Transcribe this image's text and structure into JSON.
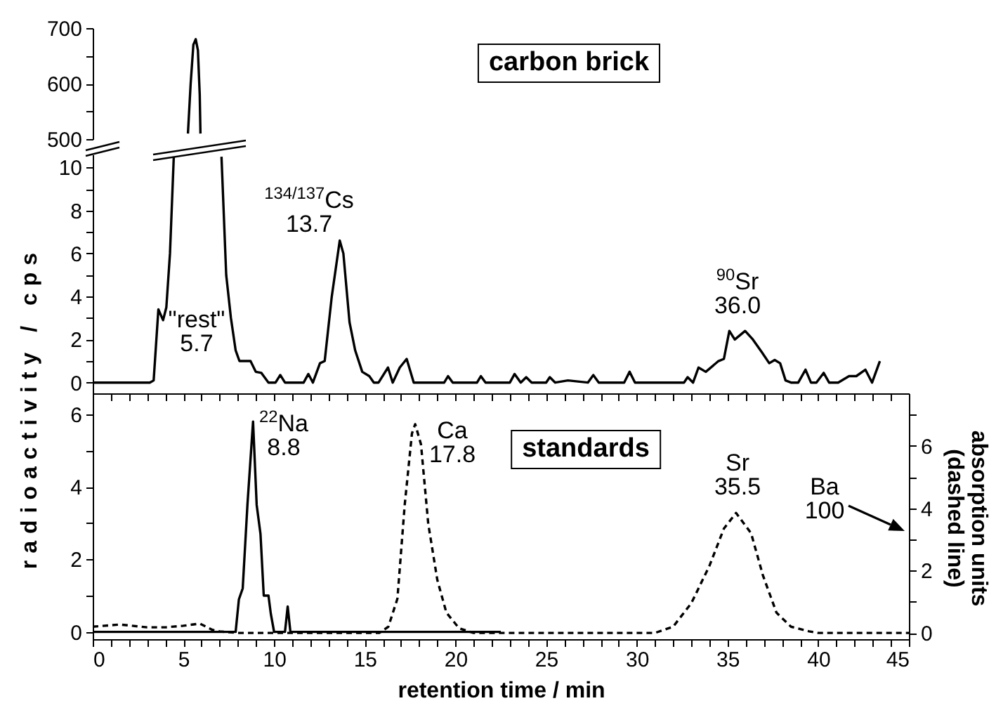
{
  "chart_data": [
    {
      "type": "line",
      "xlim": [
        0,
        45
      ],
      "ylim": [
        500,
        700
      ],
      "yticks": [
        500,
        {
          "value": 550,
          "label": null
        },
        600,
        {
          "value": 650,
          "label": null
        },
        700
      ],
      "tick_labels": "y",
      "annotations": [
        "carbon brick"
      ],
      "series": [
        {
          "color": "#000000",
          "x": [
            5.25,
            5.4,
            5.55,
            5.68,
            5.8,
            5.9,
            5.94
          ],
          "values": [
            510,
            600,
            670,
            680,
            660,
            580,
            510
          ]
        }
      ]
    },
    {
      "type": "line",
      "xlim": [
        0,
        45
      ],
      "ylim": [
        -0.5,
        10.6
      ],
      "ylabel": "radioactivity / cps",
      "tick_labels": "y",
      "xticks": [
        0,
        {
          "value": 1,
          "label": null
        },
        {
          "value": 2,
          "label": null
        },
        {
          "value": 3,
          "label": null
        },
        {
          "value": 4,
          "label": null
        },
        5,
        {
          "value": 6,
          "label": null
        },
        {
          "value": 7,
          "label": null
        },
        {
          "value": 8,
          "label": null
        },
        {
          "value": 9,
          "label": null
        },
        10,
        {
          "value": 11,
          "label": null
        },
        {
          "value": 12,
          "label": null
        },
        {
          "value": 13,
          "label": null
        },
        {
          "value": 14,
          "label": null
        },
        15,
        {
          "value": 16,
          "label": null
        },
        {
          "value": 17,
          "label": null
        },
        {
          "value": 18,
          "label": null
        },
        {
          "value": 19,
          "label": null
        },
        20,
        {
          "value": 21,
          "label": null
        },
        {
          "value": 22,
          "label": null
        },
        {
          "value": 23,
          "label": null
        },
        {
          "value": 24,
          "label": null
        },
        25,
        {
          "value": 26,
          "label": null
        },
        {
          "value": 27,
          "label": null
        },
        {
          "value": 28,
          "label": null
        },
        {
          "value": 29,
          "label": null
        },
        30,
        {
          "value": 31,
          "label": null
        },
        {
          "value": 32,
          "label": null
        },
        {
          "value": 33,
          "label": null
        },
        {
          "value": 34,
          "label": null
        },
        35,
        {
          "value": 36,
          "label": null
        },
        {
          "value": 37,
          "label": null
        },
        {
          "value": 38,
          "label": null
        },
        {
          "value": 39,
          "label": null
        },
        40,
        {
          "value": 41,
          "label": null
        },
        {
          "value": 42,
          "label": null
        },
        {
          "value": 43,
          "label": null
        },
        {
          "value": 44,
          "label": null
        },
        45
      ],
      "yticks": [
        0,
        {
          "value": 1,
          "label": null
        },
        2,
        {
          "value": 3,
          "label": null
        },
        4,
        {
          "value": 5,
          "label": null
        },
        6,
        {
          "value": 7,
          "label": null
        },
        8,
        {
          "value": 9,
          "label": null
        },
        10
      ],
      "annotations": [
        "\"rest\"\n5.7",
        "$^{134/137}$Cs\n13.7",
        "$^{90}$Sr\n36.0"
      ],
      "series": [
        {
          "color": "#000000",
          "x": [
            0,
            3.15,
            3.36,
            3.62,
            3.88,
            4.06,
            4.26,
            4.47,
            5.7,
            7.1,
            7.36,
            7.62,
            7.88,
            8.09,
            8.7,
            8.99,
            9.3,
            9.69,
            10.08,
            10.34,
            10.6,
            11.63,
            11.89,
            12.14,
            12.53,
            12.79,
            13.18,
            13.62,
            13.82,
            14.16,
            14.47,
            14.86,
            15.25,
            15.5,
            15.76,
            16.28,
            16.54,
            16.93,
            17.31,
            17.7,
            19.38,
            19.59,
            19.85,
            21.19,
            21.4,
            21.66,
            23.0,
            23.26,
            23.6,
            23.9,
            24.2,
            25.0,
            25.2,
            25.5,
            26.2,
            27.3,
            27.6,
            27.9,
            29.3,
            29.6,
            29.9,
            32.6,
            32.8,
            33.1,
            33.4,
            33.8,
            34.5,
            34.8,
            35.1,
            35.4,
            35.97,
            36.4,
            36.9,
            37.3,
            37.6,
            37.9,
            38.2,
            38.5,
            38.9,
            39.3,
            39.6,
            39.9,
            40.3,
            40.6,
            41.1,
            41.7,
            42.1,
            42.6,
            42.97,
            43.4
          ],
          "values": [
            0,
            0,
            0.1,
            3.4,
            2.9,
            3.5,
            6,
            10.5,
            null,
            10.5,
            5,
            3,
            1.5,
            1.0,
            1.0,
            0.5,
            0.45,
            0,
            0,
            0.35,
            0,
            0,
            0.4,
            0,
            0.9,
            1.0,
            4.0,
            6.6,
            6.0,
            2.8,
            1.5,
            0.5,
            0.3,
            0,
            0,
            0.7,
            0,
            0.7,
            1.1,
            0,
            0,
            0.3,
            0,
            0,
            0.3,
            0,
            0,
            0.4,
            0,
            0.25,
            0,
            0,
            0.25,
            0,
            0.1,
            0,
            0.35,
            0,
            0,
            0.5,
            0,
            0,
            0.25,
            0,
            0.7,
            0.5,
            1.0,
            1.1,
            2.4,
            2.0,
            2.4,
            2.0,
            1.4,
            0.9,
            1.05,
            0.9,
            0.1,
            0,
            0,
            0.6,
            0,
            0,
            0.45,
            0,
            0,
            0.3,
            0.3,
            0.6,
            0,
            1.0
          ]
        }
      ]
    },
    {
      "type": "line",
      "xlim": [
        0,
        45
      ],
      "ylim": [
        -0.2,
        6.5
      ],
      "y2lim": [
        -0.2,
        7.6
      ],
      "xlabel": "retention time / min",
      "y2label": "absorption units\n(dashed line)",
      "xticks": [
        0,
        {
          "value": 1,
          "label": null
        },
        {
          "value": 2,
          "label": null
        },
        {
          "value": 3,
          "label": null
        },
        {
          "value": 4,
          "label": null
        },
        5,
        {
          "value": 6,
          "label": null
        },
        {
          "value": 7,
          "label": null
        },
        {
          "value": 8,
          "label": null
        },
        {
          "value": 9,
          "label": null
        },
        10,
        {
          "value": 11,
          "label": null
        },
        {
          "value": 12,
          "label": null
        },
        {
          "value": 13,
          "label": null
        },
        {
          "value": 14,
          "label": null
        },
        15,
        {
          "value": 16,
          "label": null
        },
        {
          "value": 17,
          "label": null
        },
        {
          "value": 18,
          "label": null
        },
        {
          "value": 19,
          "label": null
        },
        20,
        {
          "value": 21,
          "label": null
        },
        {
          "value": 22,
          "label": null
        },
        {
          "value": 23,
          "label": null
        },
        {
          "value": 24,
          "label": null
        },
        25,
        {
          "value": 26,
          "label": null
        },
        {
          "value": 27,
          "label": null
        },
        {
          "value": 28,
          "label": null
        },
        {
          "value": 29,
          "label": null
        },
        30,
        {
          "value": 31,
          "label": null
        },
        {
          "value": 32,
          "label": null
        },
        {
          "value": 33,
          "label": null
        },
        {
          "value": 34,
          "label": null
        },
        35,
        {
          "value": 36,
          "label": null
        },
        {
          "value": 37,
          "label": null
        },
        {
          "value": 38,
          "label": null
        },
        {
          "value": 39,
          "label": null
        },
        40,
        {
          "value": 41,
          "label": null
        },
        {
          "value": 42,
          "label": null
        },
        {
          "value": 43,
          "label": null
        },
        {
          "value": 44,
          "label": null
        },
        45
      ],
      "yticks": [
        0,
        {
          "value": 1,
          "label": null
        },
        2,
        {
          "value": 3,
          "label": null
        },
        4,
        {
          "value": 5,
          "label": null
        },
        6
      ],
      "y2ticks": [
        0,
        {
          "value": 1,
          "label": null
        },
        2,
        {
          "value": 3,
          "label": null
        },
        4,
        {
          "value": 5,
          "label": null
        },
        6,
        {
          "value": 7,
          "label": null
        }
      ],
      "annotations": [
        "standards",
        "$^{22}$Na\n8.8",
        "Ca\n17.8",
        "Sr\n35.5",
        "Ba\n100"
      ],
      "series": [
        {
          "color": "#000000",
          "x": [
            0,
            7.88,
            8.06,
            8.27,
            8.53,
            8.84,
            9.04,
            9.25,
            9.43,
            9.69,
            9.82,
            10.0,
            10.6,
            10.75,
            10.9,
            22.5
          ],
          "values": [
            0,
            0,
            0.9,
            1.2,
            3.5,
            5.8,
            3.5,
            2.7,
            1.0,
            1.0,
            0.5,
            0,
            0,
            0.7,
            0,
            0
          ]
        },
        {
          "color": "#000000",
          "axis": "y2",
          "line_style": "dashed",
          "x": [
            0,
            1.5,
            3,
            4,
            5,
            5.9,
            6.6,
            7,
            8,
            15.8,
            16.3,
            16.8,
            17.2,
            17.6,
            17.78,
            18.1,
            18.5,
            19,
            19.5,
            20.2,
            21,
            31.0,
            32.0,
            33.0,
            34.0,
            34.8,
            35.47,
            36.3,
            36.95,
            37.7,
            38.5,
            39.5,
            40,
            45
          ],
          "values": [
            0.2,
            0.27,
            0.18,
            0.18,
            0.23,
            0.3,
            0.1,
            0.05,
            0,
            0,
            0.2,
            1.1,
            4.1,
            6.4,
            6.7,
            6.05,
            3.5,
            1.7,
            0.65,
            0.15,
            0,
            0,
            0.2,
            0.95,
            2.15,
            3.35,
            3.85,
            3.2,
            1.85,
            0.65,
            0.2,
            0.05,
            0,
            0
          ]
        }
      ]
    }
  ]
}
